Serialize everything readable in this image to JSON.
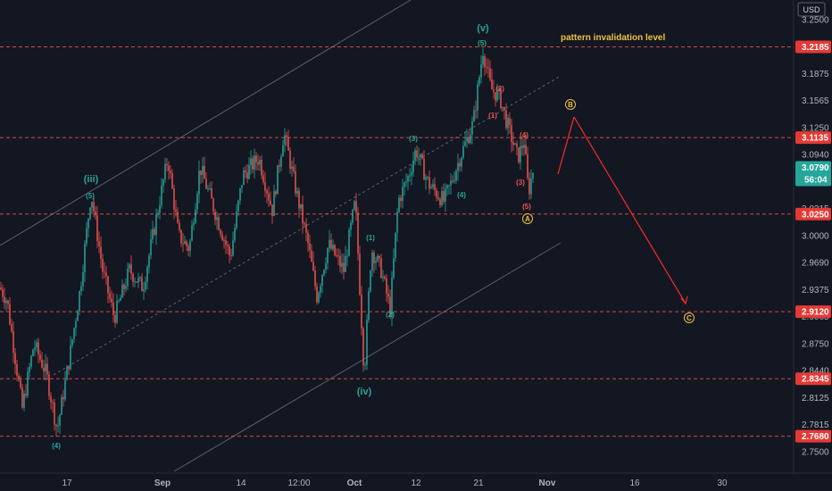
{
  "chart_data": {
    "type": "candlestick",
    "currency_label": "USD",
    "y_axis": {
      "range": [
        2.725,
        3.265
      ],
      "tick_labels": [
        "3.2500",
        "3.1875",
        "3.1565",
        "3.1250",
        "3.0940",
        "3.0000",
        "2.9690",
        "2.9375",
        "2.8750",
        "2.8440",
        "2.8125",
        "2.7815",
        "2.7500"
      ],
      "tick_values": [
        3.25,
        3.1875,
        3.1565,
        3.125,
        3.094,
        3.0,
        2.969,
        2.9375,
        2.875,
        2.844,
        2.8125,
        2.7815,
        2.75
      ],
      "partially_hidden_labels": [
        {
          "label": "3.0315",
          "value": 3.0315
        },
        {
          "label": "2.9065",
          "value": 2.9065
        }
      ]
    },
    "x_axis": {
      "tick_labels": [
        "17",
        "Sep",
        "14",
        "12:00",
        "Oct",
        "12",
        "21",
        "Nov",
        "16",
        "30"
      ],
      "bold_ticks": [
        "Sep",
        "Oct",
        "Nov"
      ]
    },
    "horizontal_levels": [
      {
        "label": "3.2185",
        "value": 3.2185
      },
      {
        "label": "3.1135",
        "value": 3.1135
      },
      {
        "label": "3.0250",
        "value": 3.025
      },
      {
        "label": "2.9120",
        "value": 2.912
      },
      {
        "label": "2.8345",
        "value": 2.8345
      },
      {
        "label": "2.7680",
        "value": 2.768
      }
    ],
    "current_price": {
      "label": "3.0790",
      "value": 3.079,
      "countdown": "56:04"
    },
    "annotation": "pattern invalidation level",
    "wave_labels": [
      {
        "text": "(iii)",
        "color": "#26a69a",
        "bg": false
      },
      {
        "text": "(5)",
        "color": "#26a69a",
        "bg": false
      },
      {
        "text": "(4)",
        "color": "#26a69a",
        "bg": false
      },
      {
        "text": "(1)",
        "color": "#26a69a",
        "bg": false
      },
      {
        "text": "(2)",
        "color": "#26a69a",
        "bg": false
      },
      {
        "text": "(iv)",
        "color": "#26a69a",
        "bg": false
      },
      {
        "text": "(3)",
        "color": "#26a69a",
        "bg": false
      },
      {
        "text": "(4)",
        "color": "#26a69a",
        "bg": false
      },
      {
        "text": "(v)",
        "color": "#26a69a",
        "bg": false
      },
      {
        "text": "(5)",
        "color": "#26a69a",
        "bg": false
      },
      {
        "text": "(2)",
        "color": "#ef5350",
        "bg": false
      },
      {
        "text": "(1)",
        "color": "#ef5350",
        "bg": false
      },
      {
        "text": "(4)",
        "color": "#ef5350",
        "bg": false
      },
      {
        "text": "(3)",
        "color": "#ef5350",
        "bg": false
      },
      {
        "text": "(5)",
        "color": "#ef5350",
        "bg": false
      },
      {
        "text": "A",
        "color": "#f0c040",
        "bg": true
      },
      {
        "text": "B",
        "color": "#f0c040",
        "bg": true
      },
      {
        "text": "C",
        "color": "#f0c040",
        "bg": true
      }
    ],
    "projection": {
      "color": "#ff2a2a"
    },
    "colors": {
      "background": "#131722",
      "up_candle": "#26a69a",
      "down_candle": "#ef5350",
      "level_line": "#ef5350",
      "level_tag": "#e53935",
      "current_tag": "#26a69a",
      "channel_line": "#5d606b",
      "annotation": "#f0c040",
      "axis_text": "#b2b5be"
    }
  }
}
